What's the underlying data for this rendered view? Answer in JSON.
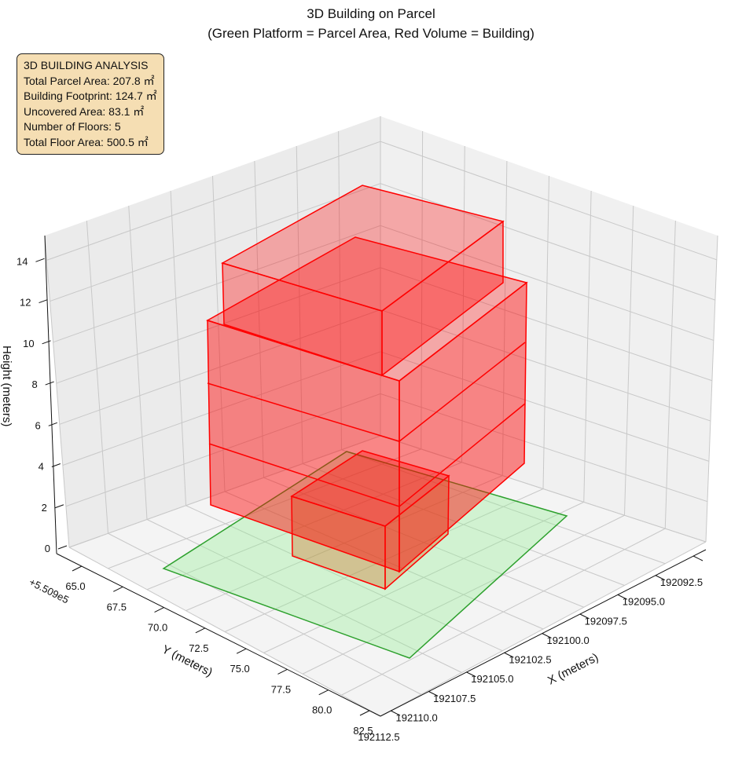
{
  "chart_data": {
    "type": "3d-polygons",
    "title": "3D Building on Parcel",
    "subtitle": "(Green Platform = Parcel Area, Red Volume = Building)",
    "xlabel": "X (meters)",
    "ylabel": "Y (meters)",
    "zlabel": "Height (meters)",
    "y_offset_label": "+5.509e5",
    "x_ticks": [
      "192092.5",
      "192095.0",
      "192097.5",
      "192100.0",
      "192102.5",
      "192105.0",
      "192107.5",
      "192110.0",
      "192112.5"
    ],
    "y_ticks": [
      "65.0",
      "67.5",
      "70.0",
      "72.5",
      "75.0",
      "77.5",
      "80.0",
      "82.5"
    ],
    "z_ticks": [
      "0",
      "2",
      "4",
      "6",
      "8",
      "10",
      "12",
      "14"
    ],
    "grid": true,
    "series": [
      {
        "name": "Parcel Area",
        "shape": "platform",
        "color": "#2ca02c",
        "fill": "#90ee90"
      },
      {
        "name": "Building",
        "shape": "volume",
        "color": "#ff0000",
        "floors": 5
      }
    ]
  },
  "info": {
    "heading": "3D BUILDING ANALYSIS",
    "lines": [
      "Total Parcel Area: 207.8 ㎡",
      "Building Footprint: 124.7 ㎡",
      "Uncovered Area: 83.1 ㎡",
      "Number of Floors: 5",
      "Total Floor Area: 500.5 ㎡"
    ]
  }
}
